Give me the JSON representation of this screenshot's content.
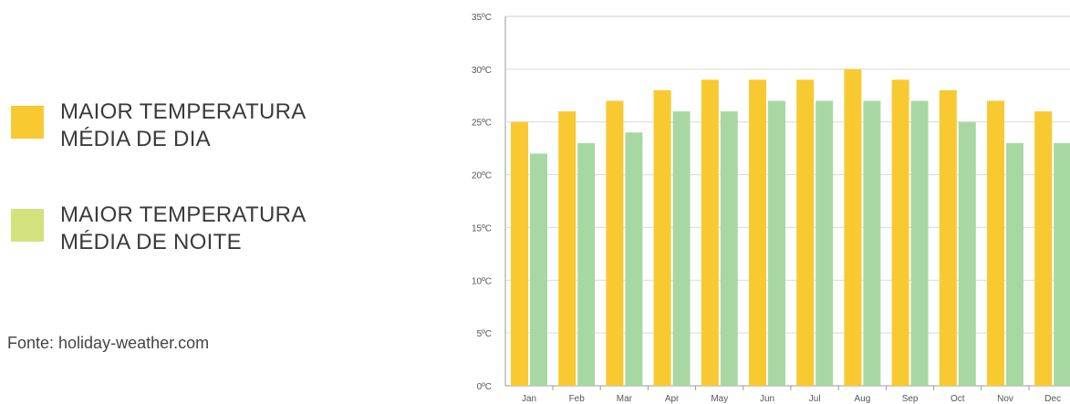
{
  "legend": {
    "day": {
      "line1": "MAIOR TEMPERATURA",
      "line2": "MÉDIA DE DIA",
      "color": "#f9c932"
    },
    "night": {
      "line1": "MAIOR TEMPERATURA",
      "line2": "MÉDIA DE NOITE",
      "color": "#d4e27c"
    }
  },
  "source": "Fonte: holiday-weather.com",
  "chart_data": {
    "type": "bar",
    "categories": [
      "Jan",
      "Feb",
      "Mar",
      "Apr",
      "May",
      "Jun",
      "Jul",
      "Aug",
      "Sep",
      "Oct",
      "Nov",
      "Dec"
    ],
    "series": [
      {
        "values": [
          25,
          26,
          27,
          28,
          29,
          29,
          29,
          30,
          29,
          28,
          27,
          26
        ],
        "color": "#f9c932"
      },
      {
        "values": [
          22,
          23,
          24,
          26,
          26,
          27,
          27,
          27,
          27,
          25,
          23,
          23
        ],
        "color": "#a8d8a2"
      }
    ],
    "y_ticks": [
      "0ºC",
      "5ºC",
      "10ºC",
      "15ºC",
      "20ºC",
      "25ºC",
      "30ºC",
      "35ºC"
    ],
    "ylim": [
      0,
      35
    ],
    "grid": true
  }
}
